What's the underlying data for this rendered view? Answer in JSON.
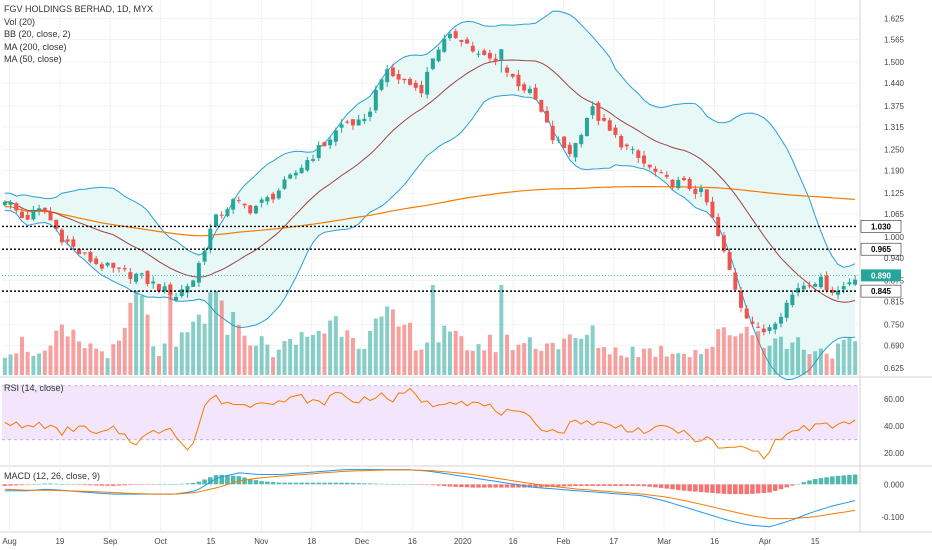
{
  "legend": {
    "symbol": "FGV HOLDINGS BERHAD, 1D, MYX",
    "vol": "Vol (20)",
    "bb": "BB (20, close, 2)",
    "ma200": "MA (200, close)",
    "ma50": "MA (50, close)"
  },
  "rsi_label": "RSI (14, close)",
  "macd_label": "MACD (12, 26, close, 9)",
  "colors": {
    "up": "#26a69a",
    "down": "#ef5350",
    "bb_band": "#2a9fd6",
    "bb_fill": "#e6f7f5",
    "ma200": "#f57c00",
    "ma50": "#a1423f",
    "rsi_line": "#f57c00",
    "rsi_zone": "#f3e5fb",
    "macd_line": "#2196f3",
    "signal_line": "#f57c00",
    "current_price": "#26a69a"
  },
  "chart_data": {
    "type": "candlestick",
    "price_axis": {
      "ticks": [
        "1.625",
        "1.565",
        "1.500",
        "1.440",
        "1.375",
        "1.315",
        "1.250",
        "1.190",
        "1.125",
        "1.065",
        "1.000",
        "0.940",
        "0.875",
        "0.815",
        "0.750",
        "0.690",
        "0.625"
      ],
      "ylim": [
        0.605,
        1.655
      ]
    },
    "x_ticks": [
      "Aug",
      "19",
      "Sep",
      "Oct",
      "15",
      "Nov",
      "18",
      "Dec",
      "16",
      "2020",
      "16",
      "Feb",
      "17",
      "Mar",
      "16",
      "Apr",
      "15"
    ],
    "horizontal_levels": [
      {
        "value": 1.03,
        "label": "1.030"
      },
      {
        "value": 0.965,
        "label": "0.965"
      },
      {
        "value": 0.845,
        "label": "0.845"
      }
    ],
    "current_price": {
      "value": 0.89,
      "label": "0.890"
    },
    "anchors": [
      {
        "c": 1.11,
        "vol": 0.3
      },
      {
        "c": 1.05,
        "vol": 0.4
      },
      {
        "c": 1.08,
        "vol": 0.2
      },
      {
        "c": 1.0,
        "vol": 0.5
      },
      {
        "c": 0.95,
        "vol": 0.4
      },
      {
        "c": 0.92,
        "vol": 0.3
      },
      {
        "c": 0.9,
        "vol": 0.3
      },
      {
        "c": 0.89,
        "vol": 1.0
      },
      {
        "c": 0.86,
        "vol": 0.3
      },
      {
        "c": 0.83,
        "vol": 0.3
      },
      {
        "c": 0.88,
        "vol": 0.6
      },
      {
        "c": 1.04,
        "vol": 0.9
      },
      {
        "c": 1.1,
        "vol": 0.5
      },
      {
        "c": 1.08,
        "vol": 0.5
      },
      {
        "c": 1.11,
        "vol": 0.3
      },
      {
        "c": 1.16,
        "vol": 0.35
      },
      {
        "c": 1.22,
        "vol": 0.5
      },
      {
        "c": 1.27,
        "vol": 0.6
      },
      {
        "c": 1.33,
        "vol": 0.7
      },
      {
        "c": 1.32,
        "vol": 0.4
      },
      {
        "c": 1.47,
        "vol": 0.65
      },
      {
        "c": 1.45,
        "vol": 0.6
      },
      {
        "c": 1.42,
        "vol": 0.4
      },
      {
        "c": 1.55,
        "vol": 0.5
      },
      {
        "c": 1.58,
        "vol": 0.4
      },
      {
        "c": 1.52,
        "vol": 0.35
      },
      {
        "c": 1.5,
        "vol": 0.4
      },
      {
        "c": 1.45,
        "vol": 0.4
      },
      {
        "c": 1.4,
        "vol": 0.4
      },
      {
        "c": 1.28,
        "vol": 0.4
      },
      {
        "c": 1.24,
        "vol": 0.4
      },
      {
        "c": 1.37,
        "vol": 0.5
      },
      {
        "c": 1.3,
        "vol": 0.3
      },
      {
        "c": 1.25,
        "vol": 0.3
      },
      {
        "c": 1.2,
        "vol": 0.3
      },
      {
        "c": 1.16,
        "vol": 0.3
      },
      {
        "c": 1.15,
        "vol": 0.3
      },
      {
        "c": 1.12,
        "vol": 0.3
      },
      {
        "c": 0.96,
        "vol": 0.5
      },
      {
        "c": 0.8,
        "vol": 0.6
      },
      {
        "c": 0.72,
        "vol": 0.5
      },
      {
        "c": 0.78,
        "vol": 0.4
      },
      {
        "c": 0.86,
        "vol": 0.4
      },
      {
        "c": 0.88,
        "vol": 0.3
      },
      {
        "c": 0.84,
        "vol": 0.3
      },
      {
        "c": 0.89,
        "vol": 0.4
      }
    ],
    "volume_spikes": [
      {
        "x_frac": 0.195,
        "vol": 1.0,
        "up": false
      },
      {
        "x_frac": 0.505,
        "vol": 1.0,
        "up": true
      },
      {
        "x_frac": 0.585,
        "vol": 1.0,
        "up": true
      },
      {
        "x_frac": 0.44,
        "vol": 0.65,
        "up": true
      },
      {
        "x_frac": 0.27,
        "vol": 0.7,
        "up": true
      }
    ],
    "rsi": {
      "ticks": [
        "60.00",
        "40.00",
        "20.00"
      ],
      "ylim": [
        12,
        75
      ],
      "band": [
        30,
        70
      ],
      "anchors": [
        45,
        38,
        42,
        35,
        40,
        33,
        38,
        28,
        35,
        40,
        20,
        62,
        58,
        55,
        60,
        58,
        62,
        56,
        65,
        58,
        63,
        60,
        66,
        55,
        60,
        58,
        55,
        50,
        48,
        40,
        35,
        45,
        42,
        40,
        38,
        36,
        40,
        32,
        30,
        22,
        25,
        18,
        32,
        38,
        40,
        40,
        45
      ]
    },
    "macd": {
      "ticks": [
        "0.000",
        "-0.100"
      ],
      "ylim": [
        -0.14,
        0.05
      ],
      "macd_anchors": [
        -0.02,
        -0.02,
        -0.015,
        -0.02,
        -0.025,
        -0.03,
        -0.03,
        -0.03,
        -0.03,
        -0.02,
        0.02,
        0.035,
        0.03,
        0.03,
        0.035,
        0.04,
        0.045,
        0.045,
        0.045,
        0.045,
        0.04,
        0.03,
        0.02,
        0.01,
        0.0,
        -0.01,
        -0.015,
        -0.02,
        -0.025,
        -0.03,
        -0.035,
        -0.05,
        -0.07,
        -0.09,
        -0.11,
        -0.125,
        -0.13,
        -0.11,
        -0.085,
        -0.065,
        -0.05
      ],
      "signal_anchors": [
        -0.015,
        -0.018,
        -0.018,
        -0.02,
        -0.022,
        -0.025,
        -0.028,
        -0.03,
        -0.03,
        -0.025,
        -0.01,
        0.01,
        0.02,
        0.025,
        0.03,
        0.035,
        0.04,
        0.042,
        0.044,
        0.044,
        0.042,
        0.037,
        0.03,
        0.02,
        0.01,
        0.0,
        -0.008,
        -0.015,
        -0.02,
        -0.025,
        -0.03,
        -0.038,
        -0.05,
        -0.065,
        -0.08,
        -0.095,
        -0.105,
        -0.105,
        -0.1,
        -0.09,
        -0.08
      ]
    }
  }
}
